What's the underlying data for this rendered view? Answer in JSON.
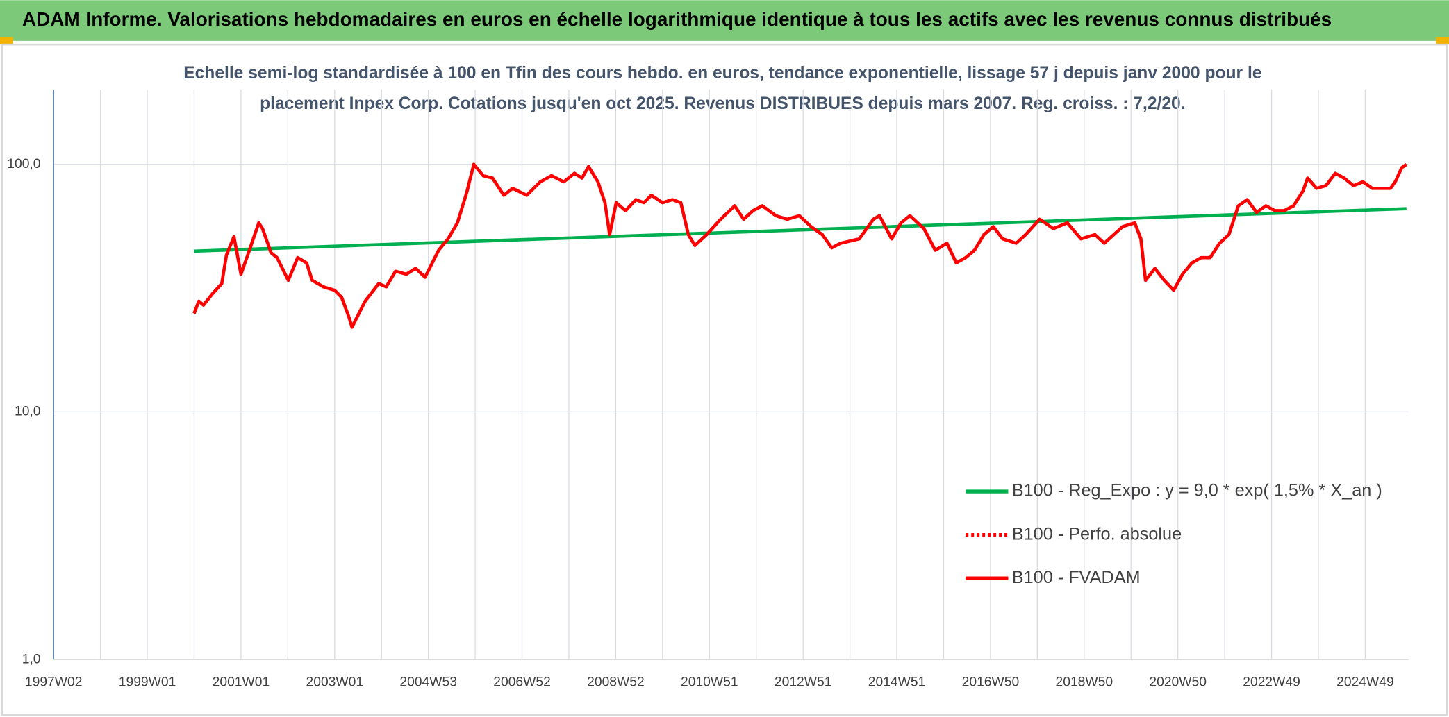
{
  "chart_data": {
    "type": "line",
    "title": "ADAM Informe. Valorisations hebdomadaires en euros en échelle logarithmique identique à tous les actifs avec les revenus connus distribués",
    "subtitle": [
      "Echelle semi-log standardisée à 100 en Tfin des cours hebdo. en euros, tendance exponentielle, lissage 57 j depuis janv 2000 pour le",
      "placement Inpex Corp. Cotations jusqu'en oct 2025. Revenus DISTRIBUES depuis mars 2007. Reg. croiss. : 7,2/20."
    ],
    "x": [
      2000.0,
      2000.1,
      2000.2,
      2000.39,
      2000.59,
      2000.69,
      2000.85,
      2001.0,
      2001.18,
      2001.38,
      2001.46,
      2001.64,
      2001.77,
      2002.01,
      2002.21,
      2002.4,
      2002.52,
      2002.76,
      2003.0,
      2003.15,
      2003.31,
      2003.37,
      2003.65,
      2003.94,
      2004.1,
      2004.3,
      2004.53,
      2004.73,
      2004.93,
      2005.22,
      2005.42,
      2005.62,
      2005.82,
      2005.97,
      2006.17,
      2006.37,
      2006.61,
      2006.8,
      2007.1,
      2007.39,
      2007.63,
      2007.89,
      2008.12,
      2008.28,
      2008.42,
      2008.62,
      2008.77,
      2008.87,
      2009.01,
      2009.21,
      2009.43,
      2009.6,
      2009.76,
      2010.0,
      2010.21,
      2010.39,
      2010.55,
      2010.69,
      2010.94,
      2011.24,
      2011.54,
      2011.73,
      2011.93,
      2012.13,
      2012.42,
      2012.66,
      2012.92,
      2013.17,
      2013.41,
      2013.61,
      2013.8,
      2014.2,
      2014.5,
      2014.63,
      2014.89,
      2015.09,
      2015.28,
      2015.58,
      2015.82,
      2016.07,
      2016.27,
      2016.47,
      2016.66,
      2016.86,
      2017.06,
      2017.26,
      2017.55,
      2017.75,
      2018.05,
      2018.34,
      2018.64,
      2018.93,
      2019.23,
      2019.43,
      2019.82,
      2020.08,
      2020.21,
      2020.31,
      2020.51,
      2020.71,
      2020.91,
      2021.1,
      2021.3,
      2021.5,
      2021.69,
      2021.89,
      2022.09,
      2022.29,
      2022.48,
      2022.68,
      2022.88,
      2023.07,
      2023.27,
      2023.47,
      2023.67,
      2023.77,
      2023.96,
      2024.16,
      2024.36,
      2024.55,
      2024.75,
      2024.95,
      2025.15,
      2025.34,
      2025.54,
      2025.64,
      2025.78,
      2025.88
    ],
    "series": [
      {
        "name": "B100 - Reg_Expo : y = 9,0 * exp( 1,5% *  X_an )",
        "color": "#00b050",
        "line_style": "solid",
        "x": [
          2000.0,
          2025.88
        ],
        "values": [
          44.6,
          66.2
        ]
      },
      {
        "name": "B100 - Perfo. absolue",
        "color": "#ff0000",
        "line_style": "dotted",
        "values": [
          25,
          28,
          27,
          30,
          33,
          43,
          51,
          36,
          45,
          58,
          55,
          44,
          42,
          34,
          42,
          40,
          34,
          32,
          31,
          29,
          24,
          22,
          28,
          33,
          32,
          37,
          36,
          38,
          35,
          45,
          50,
          58,
          77,
          100,
          90,
          88,
          75,
          80,
          75,
          85,
          90,
          85,
          92,
          88,
          98,
          85,
          70,
          52,
          70,
          65,
          72,
          70,
          75,
          70,
          72,
          70,
          52,
          47,
          52,
          60,
          68,
          60,
          65,
          68,
          62,
          60,
          62,
          56,
          52,
          46,
          48,
          50,
          60,
          62,
          50,
          58,
          62,
          55,
          45,
          48,
          40,
          42,
          45,
          52,
          56,
          50,
          48,
          52,
          60,
          55,
          58,
          50,
          52,
          48,
          56,
          58,
          50,
          34,
          38,
          34,
          31,
          36,
          40,
          42,
          42,
          48,
          52,
          68,
          72,
          64,
          68,
          65,
          65,
          68,
          78,
          88,
          80,
          82,
          92,
          88,
          82,
          85,
          80,
          80,
          80,
          85,
          97,
          100
        ]
      },
      {
        "name": "B100 - FVADAM",
        "color": "#ff0000",
        "line_style": "solid",
        "values": [
          25,
          28,
          27,
          30,
          33,
          43,
          51,
          36,
          45,
          58,
          55,
          44,
          42,
          34,
          42,
          40,
          34,
          32,
          31,
          29,
          24,
          22,
          28,
          33,
          32,
          37,
          36,
          38,
          35,
          45,
          50,
          58,
          77,
          100,
          90,
          88,
          75,
          80,
          75,
          85,
          90,
          85,
          92,
          88,
          98,
          85,
          70,
          52,
          70,
          65,
          72,
          70,
          75,
          70,
          72,
          70,
          52,
          47,
          52,
          60,
          68,
          60,
          65,
          68,
          62,
          60,
          62,
          56,
          52,
          46,
          48,
          50,
          60,
          62,
          50,
          58,
          62,
          55,
          45,
          48,
          40,
          42,
          45,
          52,
          56,
          50,
          48,
          52,
          60,
          55,
          58,
          50,
          52,
          48,
          56,
          58,
          50,
          34,
          38,
          34,
          31,
          36,
          40,
          42,
          42,
          48,
          52,
          68,
          72,
          64,
          68,
          65,
          65,
          68,
          78,
          88,
          80,
          82,
          92,
          88,
          82,
          85,
          80,
          80,
          80,
          85,
          97,
          100
        ]
      }
    ],
    "xlim": [
      1997,
      2025.92
    ],
    "xticks": [
      {
        "value": 1997,
        "label": "1997W02"
      },
      {
        "value": 1999,
        "label": "1999W01"
      },
      {
        "value": 2001,
        "label": "2001W01"
      },
      {
        "value": 2003,
        "label": "2003W01"
      },
      {
        "value": 2005,
        "label": "2004W53"
      },
      {
        "value": 2007,
        "label": "2006W52"
      },
      {
        "value": 2009,
        "label": "2008W52"
      },
      {
        "value": 2011,
        "label": "2010W51"
      },
      {
        "value": 2013,
        "label": "2012W51"
      },
      {
        "value": 2015,
        "label": "2014W51"
      },
      {
        "value": 2017,
        "label": "2016W50"
      },
      {
        "value": 2019,
        "label": "2018W50"
      },
      {
        "value": 2021,
        "label": "2020W50"
      },
      {
        "value": 2023,
        "label": "2022W49"
      },
      {
        "value": 2025,
        "label": "2024W49"
      }
    ],
    "ylim": [
      1,
      200
    ],
    "yticks": [
      {
        "value": 1,
        "label": "1,0"
      },
      {
        "value": 10,
        "label": "10,0"
      },
      {
        "value": 100,
        "label": "100,0"
      }
    ],
    "log_y": true,
    "grid": true,
    "legend": "lower right"
  }
}
